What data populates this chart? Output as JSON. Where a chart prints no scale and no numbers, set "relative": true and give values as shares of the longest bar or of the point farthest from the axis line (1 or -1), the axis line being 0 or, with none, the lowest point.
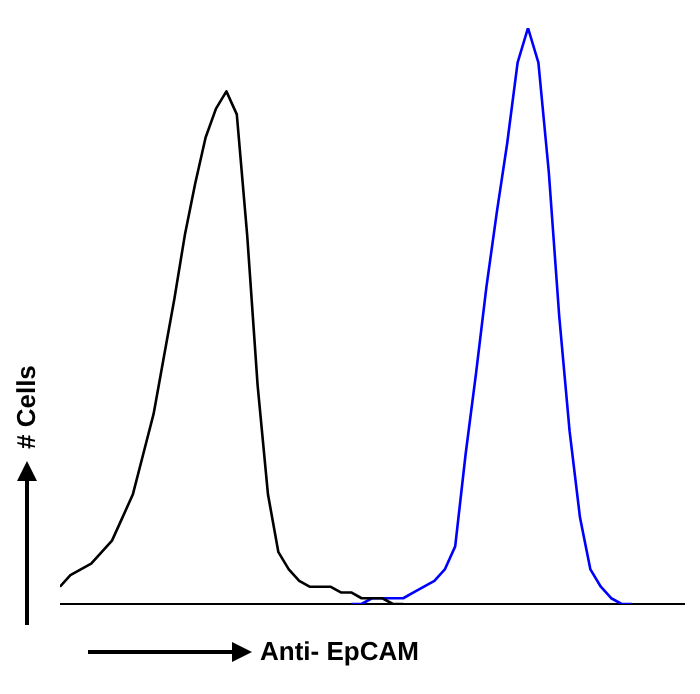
{
  "chart_data": {
    "type": "line",
    "relative": true,
    "xlabel": "Anti- EpCAM",
    "ylabel": "# Cells",
    "tick_labels": false,
    "grid": false,
    "legend": false,
    "marker": "none",
    "line_style": "solid",
    "categories": [
      null,
      null,
      null,
      null,
      null,
      null,
      null,
      null,
      null,
      null,
      null,
      null,
      null,
      null,
      null,
      null,
      null,
      null,
      null,
      null,
      null,
      null,
      null,
      null,
      null,
      null,
      null,
      null,
      null,
      null,
      null,
      null,
      null,
      null,
      null,
      null,
      null,
      null,
      null,
      null,
      null,
      null,
      null,
      null,
      null,
      null,
      null,
      null,
      null,
      null,
      null,
      null,
      null,
      null,
      null,
      null,
      null,
      null,
      null,
      null,
      null
    ],
    "series": [
      {
        "color": "#000000",
        "values": [
          0.03,
          0.05,
          0.06,
          0.07,
          0.09,
          0.11,
          0.15,
          0.19,
          0.26,
          0.33,
          0.43,
          0.53,
          0.64,
          0.73,
          0.81,
          0.86,
          0.89,
          0.85,
          0.64,
          0.38,
          0.19,
          0.09,
          0.06,
          0.04,
          0.03,
          0.03,
          0.03,
          0.02,
          0.02,
          0.01,
          0.01,
          0.01,
          0,
          0,
          null,
          null,
          null,
          null,
          null,
          null,
          null,
          null,
          null,
          null,
          null,
          null,
          null,
          null,
          null,
          null,
          null,
          null,
          null,
          null,
          null,
          null,
          null,
          null,
          null,
          null,
          null
        ]
      },
      {
        "color": "#0000ff",
        "values": [
          null,
          null,
          null,
          null,
          null,
          null,
          null,
          null,
          null,
          null,
          null,
          null,
          null,
          null,
          null,
          null,
          null,
          null,
          null,
          null,
          null,
          null,
          null,
          null,
          null,
          null,
          null,
          null,
          0,
          0,
          0.01,
          0.01,
          0.01,
          0.01,
          0.02,
          0.03,
          0.04,
          0.06,
          0.1,
          0.26,
          0.4,
          0.55,
          0.68,
          0.8,
          0.94,
          1,
          0.94,
          0.75,
          0.5,
          0.3,
          0.15,
          0.06,
          0.03,
          0.01,
          0,
          0,
          null,
          null,
          null,
          null,
          null
        ]
      }
    ]
  }
}
